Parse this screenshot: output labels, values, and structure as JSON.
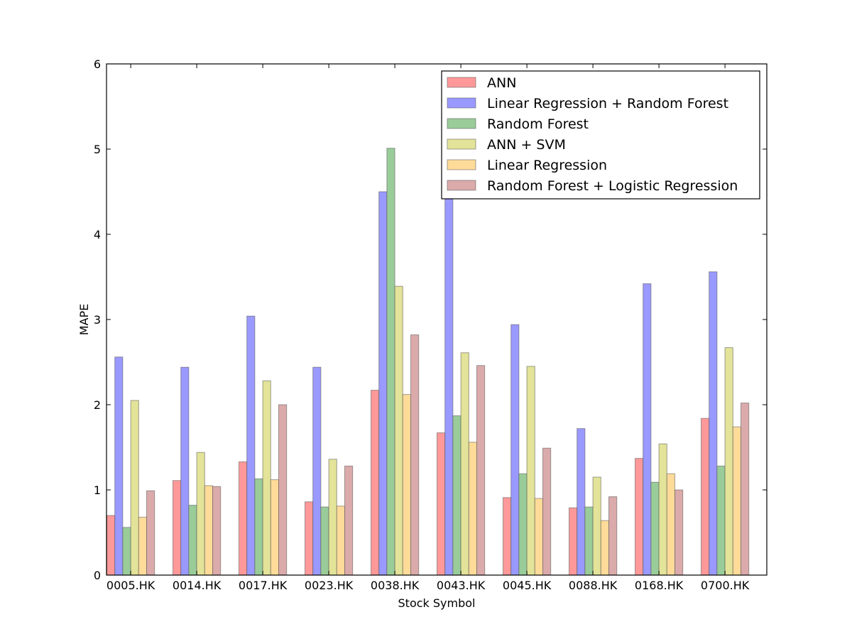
{
  "chart_data": {
    "type": "bar",
    "xlabel": "Stock Symbol",
    "ylabel": "MAPE",
    "ylim": [
      0,
      6
    ],
    "yticks": [
      "0",
      "1",
      "2",
      "3",
      "4",
      "5",
      "6"
    ],
    "legend_position": "top-right",
    "categories": [
      "0005.HK",
      "0014.HK",
      "0017.HK",
      "0023.HK",
      "0038.HK",
      "0043.HK",
      "0045.HK",
      "0088.HK",
      "0168.HK",
      "0700.HK"
    ],
    "series": [
      {
        "name": "ANN",
        "color": "#ff9999",
        "values": [
          0.7,
          1.11,
          1.33,
          0.86,
          2.17,
          1.67,
          0.91,
          0.79,
          1.37,
          1.84
        ]
      },
      {
        "name": "Linear Regression + Random Forest",
        "color": "#9999ff",
        "values": [
          2.56,
          2.44,
          3.04,
          2.44,
          4.5,
          4.49,
          2.94,
          1.72,
          3.42,
          3.56
        ]
      },
      {
        "name": "Random Forest",
        "color": "#99cc99",
        "values": [
          0.56,
          0.82,
          1.13,
          0.8,
          5.01,
          1.87,
          1.19,
          0.8,
          1.09,
          1.28
        ]
      },
      {
        "name": "ANN + SVM",
        "color": "#e3e399",
        "values": [
          2.05,
          1.44,
          2.28,
          1.36,
          3.39,
          2.61,
          2.45,
          1.15,
          1.54,
          2.67
        ]
      },
      {
        "name": "Linear Regression",
        "color": "#ffdb99",
        "values": [
          0.68,
          1.05,
          1.12,
          0.81,
          2.12,
          1.56,
          0.9,
          0.64,
          1.19,
          1.74
        ]
      },
      {
        "name": "Random Forest + Logistic Regression",
        "color": "#dbaaaa",
        "values": [
          0.99,
          1.04,
          2.0,
          1.28,
          2.82,
          2.46,
          1.49,
          0.92,
          1.0,
          2.02
        ]
      }
    ]
  }
}
